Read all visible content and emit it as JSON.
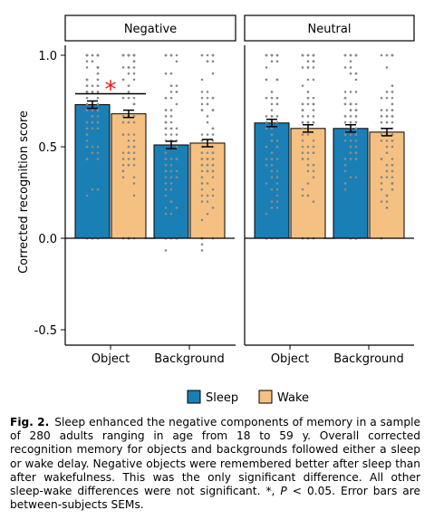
{
  "chart_data": {
    "type": "bar",
    "title": "",
    "ylabel": "Corrected recognition score",
    "xlabel": "",
    "ylim": [
      -0.6,
      1.02
    ],
    "yticks": [
      -0.5,
      0.0,
      0.5,
      1.0
    ],
    "ytick_labels": [
      "-0.5",
      "0.0",
      "0.5",
      "1.0"
    ],
    "grid": false,
    "legend_position": "bottom",
    "colors": {
      "Sleep": "#1a7fb5",
      "Wake": "#f5c182",
      "points": "#8a8a8a",
      "star": "#e41a1c"
    },
    "panels": [
      {
        "name": "Negative",
        "categories": [
          "Object",
          "Background"
        ],
        "series": [
          {
            "name": "Sleep",
            "values": [
              0.73,
              0.51
            ],
            "sem": [
              0.02,
              0.02
            ]
          },
          {
            "name": "Wake",
            "values": [
              0.68,
              0.52
            ],
            "sem": [
              0.02,
              0.02
            ]
          }
        ],
        "significance": {
          "category": "Object",
          "label": "*"
        }
      },
      {
        "name": "Neutral",
        "categories": [
          "Object",
          "Background"
        ],
        "series": [
          {
            "name": "Sleep",
            "values": [
              0.63,
              0.6
            ],
            "sem": [
              0.02,
              0.02
            ]
          },
          {
            "name": "Wake",
            "values": [
              0.6,
              0.58
            ],
            "sem": [
              0.02,
              0.02
            ]
          }
        ],
        "significance": null
      }
    ],
    "legend": [
      "Sleep",
      "Wake"
    ]
  },
  "caption": {
    "label": "Fig. 2.",
    "text_before_p": "Sleep enhanced the negative components of memory in a sample of 280 adults ranging in age from 18 to 59 y. Overall corrected recognition memory for objects and backgrounds followed either a sleep or wake delay. Negative objects were remembered better after sleep than after wakefulness. This was the only significant difference. All other sleep-wake differences were not significant. *, ",
    "p_symbol": "P",
    "text_after_p": " < 0.05. Error bars are between-subjects SEMs."
  }
}
